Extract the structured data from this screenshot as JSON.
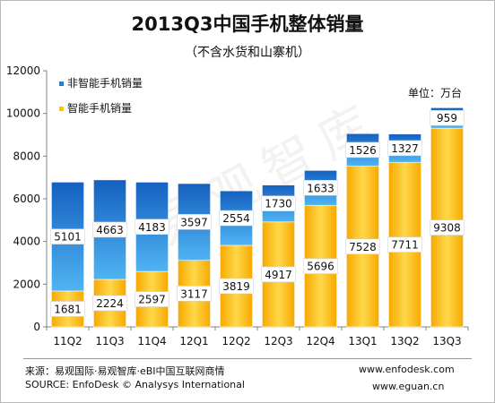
{
  "chart_data": {
    "type": "bar",
    "stacked": true,
    "title": "2013Q3中国手机整体销量",
    "subtitle": "（不含水货和山寨机）",
    "unit_label": "单位：万台",
    "categories": [
      "11Q2",
      "11Q3",
      "11Q4",
      "12Q1",
      "12Q2",
      "12Q3",
      "12Q4",
      "13Q1",
      "13Q2",
      "13Q3"
    ],
    "series": [
      {
        "name": "智能手机销量",
        "color": "#ffc200",
        "values": [
          1681,
          2224,
          2597,
          3117,
          3819,
          4917,
          5696,
          7528,
          7711,
          9308
        ]
      },
      {
        "name": "非智能手机销量",
        "color": "#1a7fd6",
        "values": [
          5101,
          4663,
          4183,
          3597,
          2554,
          1730,
          1633,
          1526,
          1327,
          959
        ]
      }
    ],
    "ylim": [
      0,
      12000
    ],
    "yticks": [
      0,
      2000,
      4000,
      6000,
      8000,
      10000,
      12000
    ],
    "legend_position": "top-left",
    "grid": false
  },
  "watermark": "易观智库",
  "footer": {
    "source_cn": "来源：易观国际·易观智库·eBI中国互联网商情",
    "source_en": "SOURCE:  EnfoDesk © Analysys International",
    "site1": "www.enfodesk.com",
    "site2": "www.eguan.cn"
  }
}
